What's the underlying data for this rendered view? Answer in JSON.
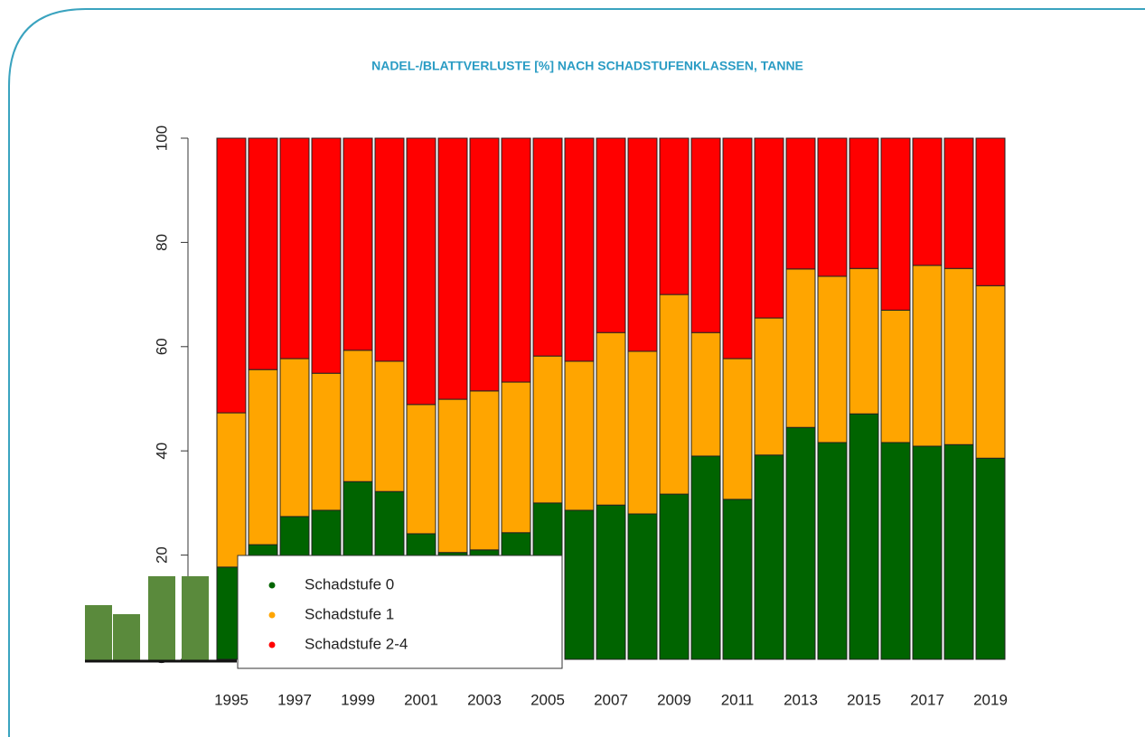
{
  "chart_data": {
    "type": "stacked_bar",
    "title": "NADEL-/BLATTVERLUSTE [%] NACH SCHADSTUFENKLASSEN, TANNE",
    "categories": [
      "1995",
      null,
      "1997",
      null,
      "1999",
      null,
      "2001",
      null,
      "2003",
      null,
      "2005",
      null,
      "2007",
      null,
      "2009",
      null,
      "2011",
      null,
      "2013",
      null,
      "2015",
      null,
      "2017",
      null,
      "2019"
    ],
    "series": [
      {
        "name": "Schadstufe 0",
        "color": "#006400",
        "values": [
          17.7,
          22,
          27.4,
          28.6,
          34.1,
          32.2,
          24.1,
          20.5,
          21,
          24.3,
          30,
          28.6,
          29.6,
          27.9,
          31.7,
          39,
          30.7,
          39.2,
          44.5,
          41.6,
          47.1,
          41.6,
          40.9,
          41.2,
          38.6
        ]
      },
      {
        "name": "Schadstufe 1",
        "color": "#ffa500",
        "values": [
          29.6,
          33.6,
          30.3,
          26.3,
          25.2,
          25,
          24.8,
          29.4,
          30.5,
          28.9,
          28.2,
          28.6,
          33.1,
          31.2,
          38.3,
          23.7,
          27,
          26.3,
          30.4,
          31.9,
          27.9,
          25.4,
          34.7,
          33.8,
          33.1
        ]
      },
      {
        "name": "Schadstufe 2-4",
        "color": "#ff0000",
        "values": [
          52.7,
          44.4,
          42.3,
          45.1,
          40.7,
          42.8,
          51.1,
          50.1,
          48.5,
          46.8,
          41.8,
          42.8,
          37.3,
          40.9,
          30,
          37.3,
          42.3,
          34.5,
          25.1,
          26.5,
          25,
          33,
          24.4,
          25,
          28.3
        ]
      }
    ],
    "ylim": [
      0,
      100
    ],
    "yticks": [
      0,
      20,
      40,
      60,
      80,
      100
    ],
    "legend": "bottom-left"
  }
}
